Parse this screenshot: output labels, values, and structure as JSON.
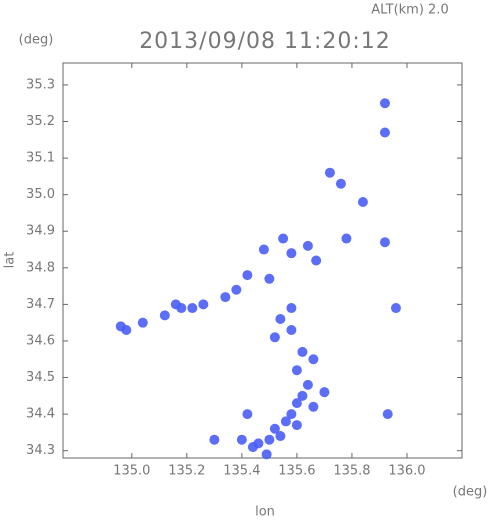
{
  "chart_data": {
    "type": "scatter",
    "title": "2013/09/08 11:20:12",
    "subtitle": "ALT(km) 2.0",
    "x_label": "lon",
    "y_label": "lat",
    "x_unit": "(deg)",
    "y_unit": "(deg)",
    "color": "#4a5ef5",
    "x": [
      134.96,
      134.98,
      135.04,
      135.12,
      135.16,
      135.18,
      135.22,
      135.26,
      135.34,
      135.42,
      135.38,
      135.5,
      135.54,
      135.52,
      135.58,
      135.62,
      135.66,
      135.6,
      135.64,
      135.7,
      135.62,
      135.42,
      135.4,
      135.44,
      135.46,
      135.5,
      135.52,
      135.56,
      135.58,
      135.6,
      135.6,
      135.66,
      135.64,
      135.58,
      135.72,
      135.76,
      135.84,
      135.78,
      135.92,
      135.92,
      135.93,
      135.96,
      135.92,
      135.58,
      135.55,
      135.67,
      135.48,
      135.3,
      135.49,
      135.54
    ],
    "values": [
      34.64,
      34.63,
      34.65,
      34.67,
      34.7,
      34.69,
      34.69,
      34.7,
      34.72,
      34.78,
      34.74,
      34.77,
      34.66,
      34.61,
      34.63,
      34.57,
      34.55,
      34.52,
      34.48,
      34.46,
      34.45,
      34.4,
      34.33,
      34.31,
      34.32,
      34.33,
      34.36,
      34.38,
      34.4,
      34.43,
      34.37,
      34.42,
      34.86,
      34.84,
      35.06,
      35.03,
      34.98,
      34.88,
      35.25,
      35.17,
      34.4,
      34.69,
      34.87,
      34.69,
      34.88,
      34.82,
      34.85,
      34.33,
      34.29,
      34.34
    ],
    "xlim": [
      134.75,
      136.2
    ],
    "ylim": [
      34.28,
      35.36
    ],
    "xticks": [
      {
        "value": 135.0,
        "label": "135.0"
      },
      {
        "value": 135.2,
        "label": "135.2"
      },
      {
        "value": 135.4,
        "label": "135.4"
      },
      {
        "value": 135.6,
        "label": "135.6"
      },
      {
        "value": 135.8,
        "label": "135.8"
      },
      {
        "value": 136.0,
        "label": "136.0"
      }
    ],
    "yticks": [
      34.3,
      34.4,
      34.5,
      34.6,
      34.7,
      34.8,
      34.9,
      {
        "value": 35.0,
        "label": "35.0"
      },
      35.1,
      35.2,
      35.3
    ]
  }
}
